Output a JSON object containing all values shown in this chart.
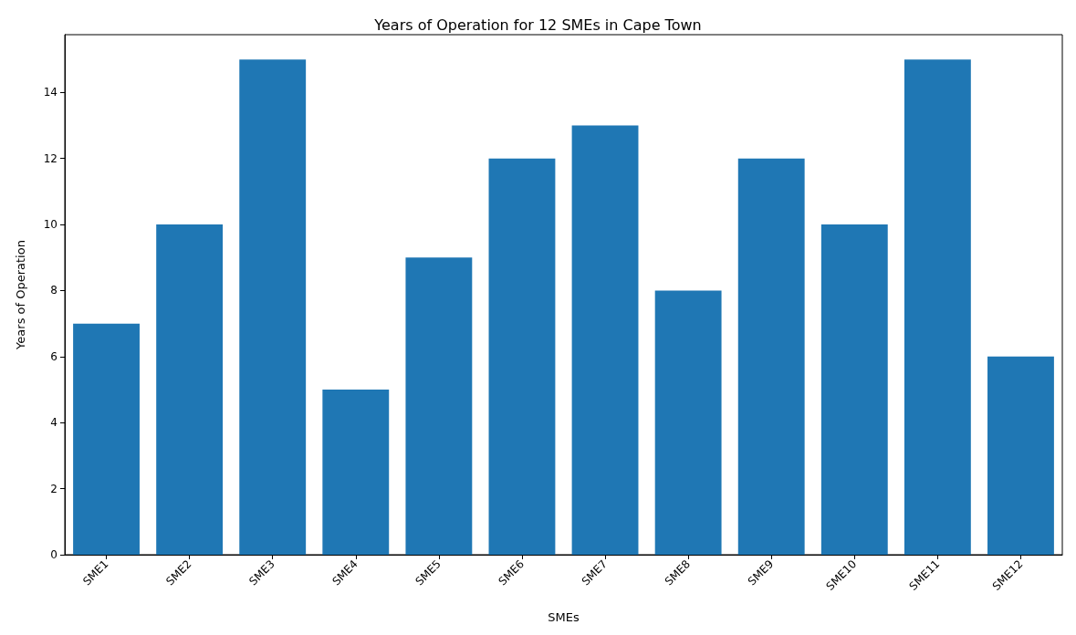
{
  "chart_data": {
    "type": "bar",
    "title": "Years of Operation for 12 SMEs in Cape Town",
    "xlabel": "SMEs",
    "ylabel": "Years of Operation",
    "categories": [
      "SME1",
      "SME2",
      "SME3",
      "SME4",
      "SME5",
      "SME6",
      "SME7",
      "SME8",
      "SME9",
      "SME10",
      "SME11",
      "SME12"
    ],
    "values": [
      7,
      10,
      15,
      5,
      9,
      12,
      13,
      8,
      12,
      10,
      15,
      6
    ],
    "color": "#1f77b4",
    "ylim": [
      0,
      15.75
    ],
    "yticks": [
      0,
      2,
      4,
      6,
      8,
      10,
      12,
      14
    ],
    "grid": false
  }
}
